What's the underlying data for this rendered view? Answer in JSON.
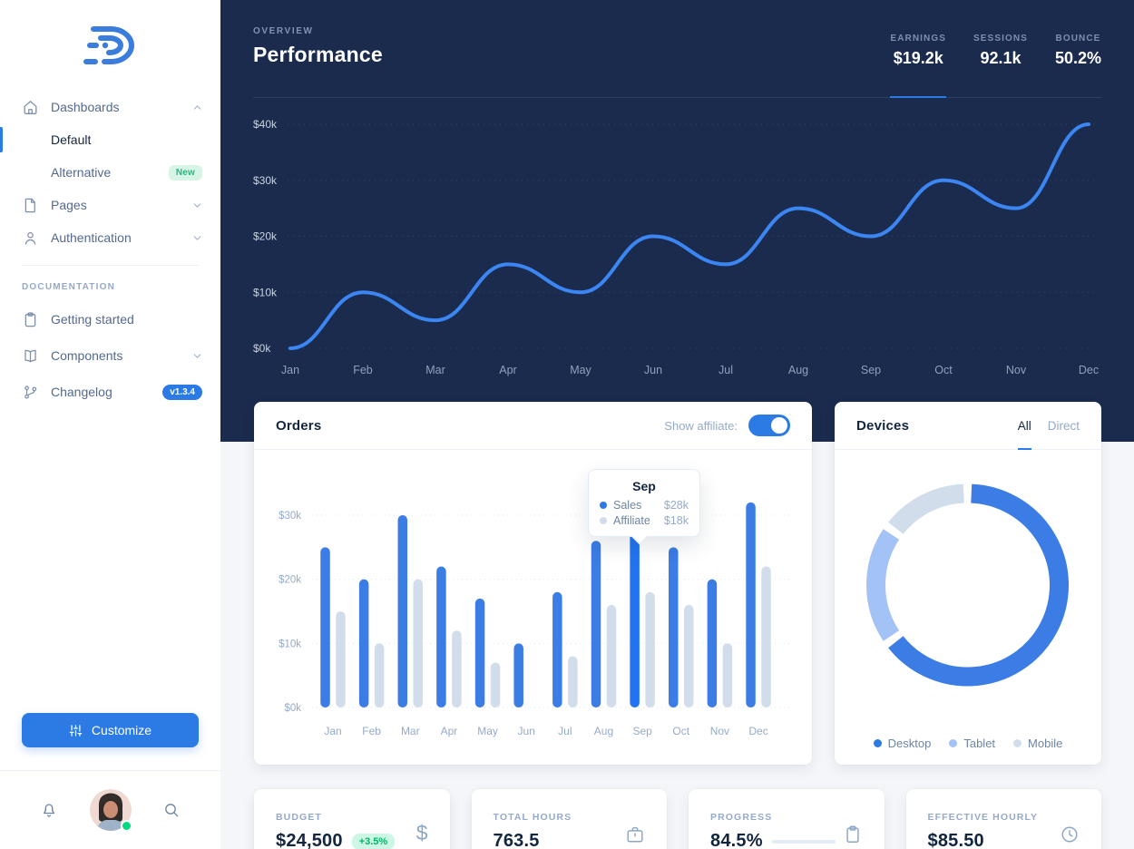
{
  "sidebar": {
    "nav": [
      {
        "label": "Dashboards"
      },
      {
        "label": "Default",
        "active": true
      },
      {
        "label": "Alternative",
        "badge": "New"
      },
      {
        "label": "Pages"
      },
      {
        "label": "Authentication"
      }
    ],
    "section_label": "DOCUMENTATION",
    "docs": [
      {
        "label": "Getting started"
      },
      {
        "label": "Components"
      },
      {
        "label": "Changelog",
        "badge": "v1.3.4"
      }
    ],
    "customize_label": "Customize"
  },
  "hero": {
    "eyebrow": "OVERVIEW",
    "title": "Performance",
    "stats": [
      {
        "label": "EARNINGS",
        "value": "$19.2k",
        "active": true
      },
      {
        "label": "SESSIONS",
        "value": "92.1k"
      },
      {
        "label": "BOUNCE",
        "value": "50.2%"
      }
    ]
  },
  "orders": {
    "title": "Orders",
    "toggle_label": "Show affiliate:",
    "toggle_on": true,
    "tooltip": {
      "title": "Sep",
      "rows": [
        {
          "label": "Sales",
          "value": "$28k"
        },
        {
          "label": "Affiliate",
          "value": "$18k"
        }
      ]
    }
  },
  "devices": {
    "title": "Devices",
    "tabs": [
      {
        "label": "All",
        "active": true
      },
      {
        "label": "Direct"
      }
    ],
    "legend": [
      {
        "label": "Desktop",
        "color": "#2c7be5"
      },
      {
        "label": "Tablet",
        "color": "#a3c2f5"
      },
      {
        "label": "Mobile",
        "color": "#d2ddec"
      }
    ]
  },
  "kpis": [
    {
      "label": "BUDGET",
      "value": "$24,500",
      "badge": "+3.5%",
      "icon": "dollar-icon"
    },
    {
      "label": "TOTAL HOURS",
      "value": "763.5",
      "icon": "briefcase-icon"
    },
    {
      "label": "PROGRESS",
      "value": "84.5%",
      "progress_pct": 84.5,
      "icon": "clipboard-icon"
    },
    {
      "label": "EFFECTIVE HOURLY",
      "value": "$85.50",
      "icon": "clock-icon"
    }
  ],
  "colors": {
    "primary": "#2c7be5",
    "navy_header": "#1b2b4e",
    "line": "#3b86f2",
    "grid_light": "#e2eaf4",
    "axis_muted": "#95aac9",
    "success": "#00d97e"
  },
  "chart_data": [
    {
      "id": "performance-line",
      "type": "line",
      "title": "Performance",
      "x": [
        "Jan",
        "Feb",
        "Mar",
        "Apr",
        "May",
        "Jun",
        "Jul",
        "Aug",
        "Sep",
        "Oct",
        "Nov",
        "Dec"
      ],
      "series": [
        {
          "name": "Earnings",
          "values": [
            0,
            10,
            5,
            15,
            10,
            20,
            15,
            25,
            20,
            30,
            25,
            40
          ],
          "color": "#3b86f2"
        }
      ],
      "ylim": [
        0,
        40
      ],
      "yticks": [
        0,
        10,
        20,
        30,
        40
      ],
      "ytick_labels": [
        "$0k",
        "$10k",
        "$20k",
        "$30k",
        "$40k"
      ],
      "grid": "dotted-horizontal",
      "legend_position": "none"
    },
    {
      "id": "orders-bar",
      "type": "bar",
      "title": "Orders",
      "categories": [
        "Jan",
        "Feb",
        "Mar",
        "Apr",
        "May",
        "Jun",
        "Jul",
        "Aug",
        "Sep",
        "Oct",
        "Nov",
        "Dec"
      ],
      "series": [
        {
          "name": "Sales",
          "values": [
            25,
            20,
            30,
            22,
            17,
            10,
            18,
            26,
            28,
            25,
            20,
            32
          ],
          "color": "#3b7ce5"
        },
        {
          "name": "Affiliate",
          "values": [
            15,
            10,
            20,
            12,
            7,
            0,
            8,
            16,
            18,
            16,
            10,
            22
          ],
          "color": "#d2ddec"
        }
      ],
      "ylim": [
        0,
        30
      ],
      "yticks": [
        0,
        10,
        20,
        30
      ],
      "ytick_labels": [
        "$0k",
        "$10k",
        "$20k",
        "$30k"
      ],
      "highlight_index": 8,
      "highlight_color": "#2273f2",
      "grid": "dotted-horizontal"
    },
    {
      "id": "devices-donut",
      "type": "pie",
      "labels": [
        "Desktop",
        "Tablet",
        "Mobile"
      ],
      "values": [
        65,
        20,
        15
      ],
      "colors": [
        "#3b7ce5",
        "#a3c2f5",
        "#d2ddec"
      ],
      "legend_position": "bottom"
    }
  ]
}
